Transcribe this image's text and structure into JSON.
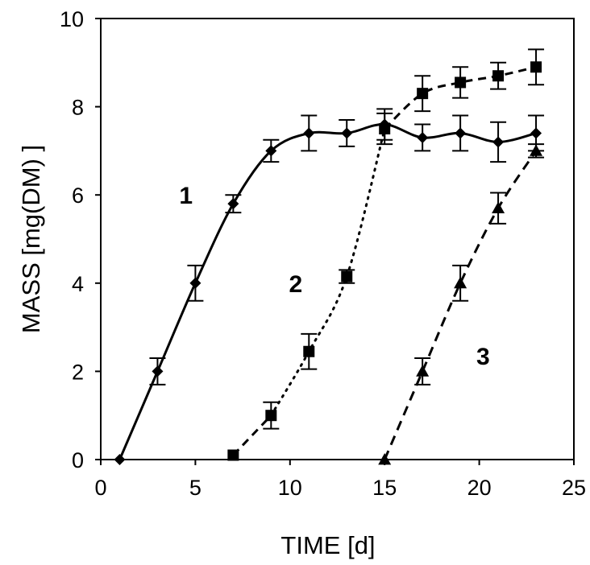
{
  "chart_data": {
    "type": "scatter",
    "title": "",
    "xlabel": "TIME [d]",
    "ylabel": "MASS  [mg(DM) ]",
    "xlim": [
      0,
      25
    ],
    "ylim": [
      0,
      10
    ],
    "xticks": [
      0,
      5,
      10,
      15,
      20,
      25
    ],
    "yticks": [
      0,
      2,
      4,
      6,
      8,
      10
    ],
    "xtick_labels": [
      "0",
      "5",
      "10",
      "15",
      "20",
      "25"
    ],
    "ytick_labels": [
      "0",
      "2",
      "4",
      "6",
      "8",
      "10"
    ],
    "grid": false,
    "series": [
      {
        "name": "1",
        "marker": "diamond",
        "line": "solid-smooth",
        "points": [
          {
            "x": 1,
            "y": 0,
            "err": 0
          },
          {
            "x": 3,
            "y": 2.0,
            "err": 0.3
          },
          {
            "x": 5,
            "y": 4.0,
            "err": 0.4
          },
          {
            "x": 7,
            "y": 5.8,
            "err": 0.2
          },
          {
            "x": 9,
            "y": 7.0,
            "err": 0.25
          },
          {
            "x": 11,
            "y": 7.4,
            "err": 0.4
          },
          {
            "x": 13,
            "y": 7.4,
            "err": 0.3
          },
          {
            "x": 15,
            "y": 7.6,
            "err": 0.35
          },
          {
            "x": 17,
            "y": 7.3,
            "err": 0.3
          },
          {
            "x": 19,
            "y": 7.4,
            "err": 0.4
          },
          {
            "x": 21,
            "y": 7.2,
            "err": 0.45
          },
          {
            "x": 23,
            "y": 7.4,
            "err": 0.4
          }
        ]
      },
      {
        "name": "2",
        "marker": "square",
        "line": "dashed-dotted",
        "points": [
          {
            "x": 7,
            "y": 0.1,
            "err": 0
          },
          {
            "x": 9,
            "y": 1.0,
            "err": 0.3
          },
          {
            "x": 11,
            "y": 2.45,
            "err": 0.4
          },
          {
            "x": 13,
            "y": 4.15,
            "err": 0.15
          },
          {
            "x": 15,
            "y": 7.5,
            "err": 0.35
          },
          {
            "x": 17,
            "y": 8.3,
            "err": 0.4
          },
          {
            "x": 19,
            "y": 8.55,
            "err": 0.35
          },
          {
            "x": 21,
            "y": 8.7,
            "err": 0.3
          },
          {
            "x": 23,
            "y": 8.9,
            "err": 0.4
          }
        ]
      },
      {
        "name": "3",
        "marker": "triangle",
        "line": "dashed",
        "points": [
          {
            "x": 15,
            "y": 0,
            "err": 0
          },
          {
            "x": 17,
            "y": 2.0,
            "err": 0.3
          },
          {
            "x": 19,
            "y": 4.0,
            "err": 0.4
          },
          {
            "x": 21,
            "y": 5.7,
            "err": 0.35
          },
          {
            "x": 23,
            "y": 7.0,
            "err": 0.15
          }
        ]
      }
    ],
    "annotations": [
      {
        "text": "1",
        "x": 4.5,
        "y": 6.0
      },
      {
        "text": "2",
        "x": 10.3,
        "y": 4.0
      },
      {
        "text": "3",
        "x": 20.2,
        "y": 2.35
      }
    ]
  }
}
